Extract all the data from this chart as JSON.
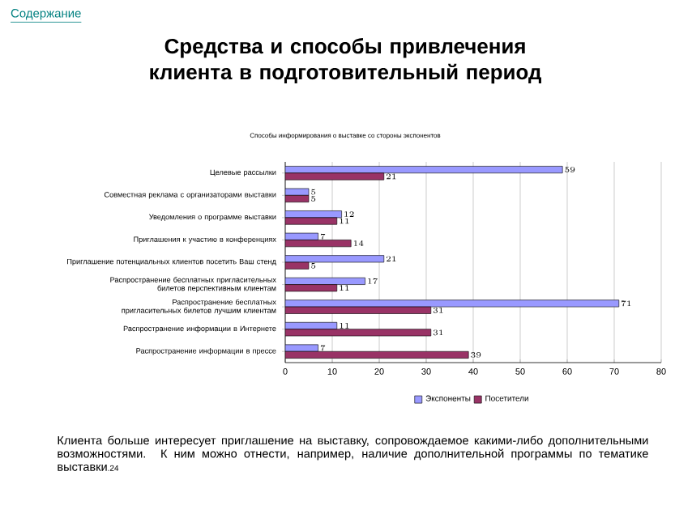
{
  "chart_data": {
    "type": "bar",
    "orientation": "horizontal",
    "title": "Средства и способы привлечения клиента в подготовительный период",
    "subtitle": "Способы информирования  о выставке со стороны  экспонентов",
    "annotations": [
      "Содержание",
      "Клиента больше интересует приглашение на выставку, сопровождаемое какими-либо дополнительными возможностями. К ним можно отнести, например, наличие дополнительной программы по тематике выставки",
      ".24"
    ],
    "categories": [
      "Целевые рассылки",
      "Совместная реклама с организаторами выставки",
      "Уведомления о программе выставки",
      "Приглашения к участию в конференциях",
      "Приглашение потенциальных клиентов посетить Ваш стенд",
      "Распространение бесплатных пригласительных билетов перспективным клиентам",
      "Распространение бесплатных пригласительных билетов лучшим клиентам",
      "Распространение информации в Интернете",
      "Распространение информации в прессе"
    ],
    "series": [
      {
        "name": "Экспоненты",
        "color": "#9999ff",
        "values": [
          59,
          5,
          12,
          7,
          21,
          17,
          71,
          11,
          7
        ]
      },
      {
        "name": "Посетители",
        "color": "#993366",
        "values": [
          21,
          5,
          11,
          14,
          5,
          11,
          31,
          31,
          39
        ]
      }
    ],
    "xlim": [
      0,
      80
    ],
    "xticks": [
      0,
      10,
      20,
      30,
      40,
      50,
      60,
      70,
      80
    ],
    "grid": "x",
    "legend": "bottom",
    "data_labels": true
  }
}
